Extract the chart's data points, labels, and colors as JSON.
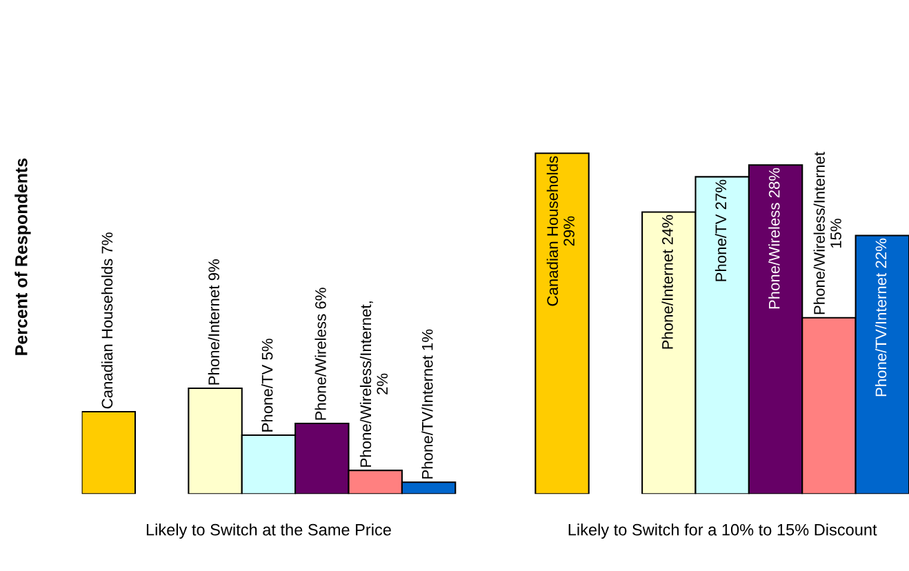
{
  "chart_data": {
    "type": "bar",
    "ylabel": "Percent of Respondents",
    "categories": [
      "Likely to Switch at the Same Price",
      "Likely to Switch for a 10% to 15% Discount"
    ],
    "series": [
      {
        "color": "#ffcc00",
        "values": [
          7,
          29
        ],
        "value_labels": [
          "Canadian Households 7%",
          "Canadian Households\n29%"
        ]
      },
      {
        "color": "#ffffcc",
        "values": [
          9,
          24
        ],
        "value_labels": [
          "Phone/Internet 9%",
          "Phone/Internet 24%"
        ]
      },
      {
        "color": "#ccffff",
        "values": [
          5,
          27
        ],
        "value_labels": [
          "Phone/TV 5%",
          "Phone/TV 27%"
        ]
      },
      {
        "color": "#660066",
        "values": [
          6,
          28
        ],
        "value_labels": [
          "Phone/Wireless 6%",
          "Phone/Wireless 28%"
        ]
      },
      {
        "color": "#ff8080",
        "values": [
          2,
          15
        ],
        "value_labels": [
          "Phone/Wireless/Internet,\n2%",
          "Phone/Wireless/Internet\n15%"
        ]
      },
      {
        "color": "#0066cc",
        "values": [
          1,
          22
        ],
        "value_labels": [
          "Phone/TV/Internet 1%",
          "Phone/TV/Internet 22%"
        ]
      }
    ]
  }
}
